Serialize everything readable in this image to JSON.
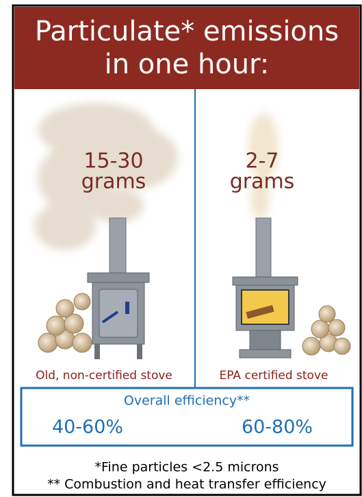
{
  "header": {
    "title_lines": [
      "Particulate* emissions",
      "in one hour:"
    ]
  },
  "panels": [
    {
      "amount_number": "15-30",
      "amount_unit": "grams",
      "label": "Old, non-certified stove",
      "efficiency": "40-60%"
    },
    {
      "amount_number": "2-7",
      "amount_unit": "grams",
      "label": "EPA certified stove",
      "efficiency": "60-80%"
    }
  ],
  "efficiency": {
    "heading": "Overall efficiency**"
  },
  "footnotes": [
    "*Fine particles <2.5 microns",
    "** Combustion and heat transfer efficiency"
  ]
}
